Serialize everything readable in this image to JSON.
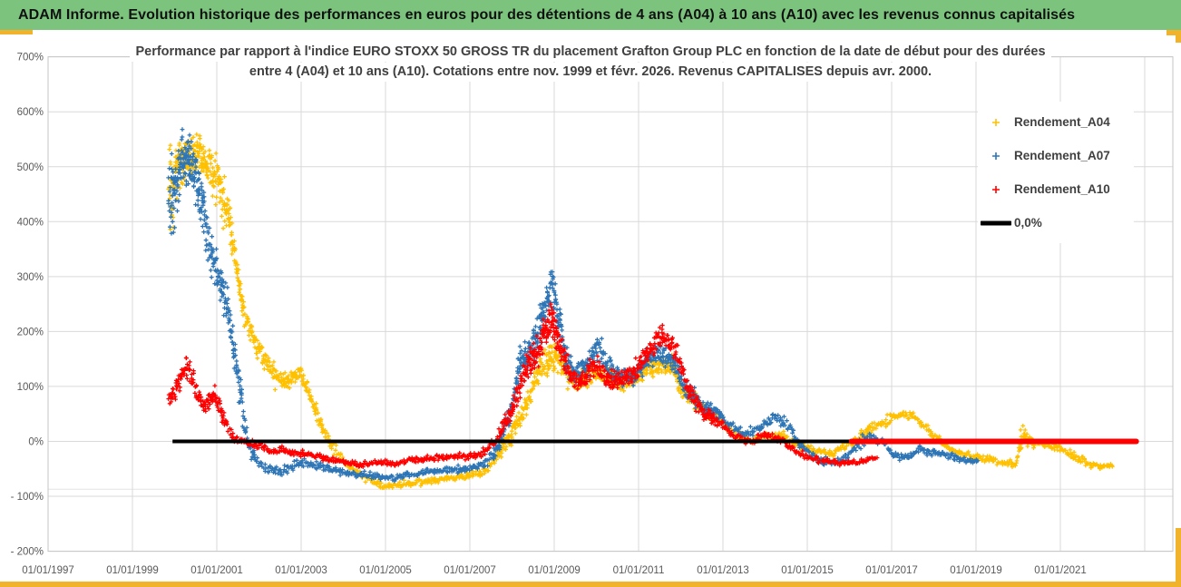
{
  "report": {
    "title": "ADAM Informe. Evolution historique des performances en euros pour des détentions de 4 ans (A04) à 10 ans (A10) avec les revenus connus capitalisés"
  },
  "theme": {
    "title_bar_bg": "#7CC47E",
    "title_bar_text": "#111111",
    "accent_gold": "#F0B32B",
    "grid_color": "#D9D9D9",
    "frame_color": "#C6C6C6",
    "axis_text_color": "#595959",
    "title_text_color": "#404040",
    "legend_text_color": "#404040",
    "background": "#FFFFFF"
  },
  "chart_data": {
    "type": "scatter",
    "title_line1": "Performance par rapport à l'indice EURO STOXX 50 GROSS TR  du placement Grafton Group PLC en fonction de la date de début pour des durées",
    "title_line2": "entre 4 (A04) et 10 ans (A10).  Cotations entre nov. 1999 et févr. 2026.  Revenus CAPITALISES depuis avr. 2000.",
    "x_axis": {
      "tick_labels": [
        "01/01/1997",
        "01/01/1999",
        "01/01/2001",
        "01/01/2003",
        "01/01/2005",
        "01/01/2007",
        "01/01/2009",
        "01/01/2011",
        "01/01/2013",
        "01/01/2015",
        "01/01/2017",
        "01/01/2019",
        "01/01/2021"
      ],
      "tick_years": [
        1997,
        1999,
        2001,
        2003,
        2005,
        2007,
        2009,
        2011,
        2013,
        2015,
        2017,
        2019,
        2021
      ],
      "grid_years": [
        1997,
        1999,
        2001,
        2003,
        2005,
        2007,
        2009,
        2011,
        2013,
        2015,
        2017,
        2019,
        2021,
        2023
      ],
      "min_year": 1997,
      "max_year": 2023.7
    },
    "y_axis": {
      "tick_labels": [
        "700%",
        "600%",
        "500%",
        "400%",
        "300%",
        "200%",
        "100%",
        "0%",
        "- 100%",
        "- 200%"
      ],
      "tick_values": [
        700,
        600,
        500,
        400,
        300,
        200,
        100,
        0,
        -100,
        -200
      ],
      "min": -200,
      "max": 700,
      "extra_gridline_value": -87
    },
    "legend": [
      {
        "label": "Rendement_A04",
        "color": "#FFC000",
        "marker": "plus"
      },
      {
        "label": "Rendement_A07",
        "color": "#2E75B6",
        "marker": "plus"
      },
      {
        "label": "Rendement_A10",
        "color": "#FF0000",
        "marker": "plus"
      },
      {
        "label": "0,0%",
        "color": "#000000",
        "marker": "line"
      }
    ],
    "zero_line": {
      "label": "0,0%",
      "color": "#000000",
      "value": 0,
      "from_year": 1999.95,
      "to_year": 2022.65
    },
    "series": [
      {
        "name": "Rendement_A04",
        "color": "#FFC000",
        "anchors": [
          [
            1999.87,
            440,
            130
          ],
          [
            2000.1,
            500,
            70
          ],
          [
            2000.35,
            520,
            55
          ],
          [
            2000.6,
            530,
            50
          ],
          [
            2000.85,
            490,
            55
          ],
          [
            2001.05,
            470,
            60
          ],
          [
            2001.25,
            420,
            55
          ],
          [
            2001.45,
            330,
            45
          ],
          [
            2001.65,
            230,
            35
          ],
          [
            2001.9,
            185,
            30
          ],
          [
            2002.15,
            150,
            30
          ],
          [
            2002.4,
            115,
            25
          ],
          [
            2002.7,
            110,
            22
          ],
          [
            2003.0,
            125,
            22
          ],
          [
            2003.3,
            65,
            20
          ],
          [
            2003.65,
            0,
            15
          ],
          [
            2004.05,
            -40,
            12
          ],
          [
            2004.5,
            -65,
            10
          ],
          [
            2005.0,
            -82,
            7
          ],
          [
            2005.5,
            -76,
            8
          ],
          [
            2006.0,
            -72,
            8
          ],
          [
            2006.5,
            -67,
            8
          ],
          [
            2007.0,
            -62,
            8
          ],
          [
            2007.4,
            -55,
            10
          ],
          [
            2007.7,
            -20,
            18
          ],
          [
            2008.0,
            15,
            25
          ],
          [
            2008.3,
            60,
            30
          ],
          [
            2008.55,
            110,
            30
          ],
          [
            2008.8,
            150,
            35
          ],
          [
            2009.05,
            155,
            35
          ],
          [
            2009.3,
            120,
            30
          ],
          [
            2009.6,
            115,
            28
          ],
          [
            2009.9,
            125,
            28
          ],
          [
            2010.2,
            120,
            25
          ],
          [
            2010.55,
            105,
            22
          ],
          [
            2010.9,
            115,
            22
          ],
          [
            2011.2,
            130,
            25
          ],
          [
            2011.5,
            140,
            28
          ],
          [
            2011.8,
            135,
            28
          ],
          [
            2012.1,
            90,
            25
          ],
          [
            2012.5,
            60,
            18
          ],
          [
            2012.85,
            45,
            15
          ],
          [
            2013.2,
            18,
            12
          ],
          [
            2013.6,
            2,
            10
          ],
          [
            2014.0,
            10,
            10
          ],
          [
            2014.4,
            12,
            10
          ],
          [
            2014.8,
            -8,
            10
          ],
          [
            2015.2,
            -18,
            8
          ],
          [
            2015.6,
            -22,
            8
          ],
          [
            2015.9,
            -10,
            10
          ],
          [
            2016.2,
            5,
            15
          ],
          [
            2016.45,
            20,
            18
          ],
          [
            2016.7,
            32,
            12
          ],
          [
            2017.0,
            42,
            12
          ],
          [
            2017.3,
            50,
            10
          ],
          [
            2017.55,
            45,
            10
          ],
          [
            2017.8,
            25,
            10
          ],
          [
            2018.05,
            8,
            10
          ],
          [
            2018.35,
            -12,
            10
          ],
          [
            2018.65,
            -22,
            8
          ],
          [
            2018.95,
            -28,
            8
          ],
          [
            2019.3,
            -33,
            8
          ],
          [
            2019.65,
            -40,
            8
          ],
          [
            2019.95,
            -40,
            8
          ],
          [
            2020.1,
            10,
            32
          ],
          [
            2020.3,
            0,
            18
          ],
          [
            2020.6,
            -6,
            10
          ],
          [
            2020.9,
            -10,
            10
          ],
          [
            2021.15,
            -18,
            10
          ],
          [
            2021.45,
            -30,
            10
          ],
          [
            2021.75,
            -45,
            8
          ],
          [
            2022.05,
            -46,
            7
          ],
          [
            2022.25,
            -43,
            5
          ]
        ]
      },
      {
        "name": "Rendement_A07",
        "color": "#2E75B6",
        "anchors": [
          [
            1999.87,
            420,
            120
          ],
          [
            2000.05,
            480,
            90
          ],
          [
            2000.25,
            520,
            60
          ],
          [
            2000.45,
            500,
            65
          ],
          [
            2000.65,
            430,
            60
          ],
          [
            2000.85,
            350,
            55
          ],
          [
            2001.05,
            300,
            50
          ],
          [
            2001.25,
            245,
            45
          ],
          [
            2001.45,
            150,
            40
          ],
          [
            2001.6,
            60,
            35
          ],
          [
            2001.75,
            -10,
            20
          ],
          [
            2001.95,
            -35,
            15
          ],
          [
            2002.2,
            -48,
            12
          ],
          [
            2002.5,
            -55,
            12
          ],
          [
            2002.8,
            -45,
            12
          ],
          [
            2003.1,
            -40,
            12
          ],
          [
            2003.5,
            -45,
            12
          ],
          [
            2003.9,
            -55,
            10
          ],
          [
            2004.3,
            -60,
            10
          ],
          [
            2004.7,
            -62,
            10
          ],
          [
            2005.1,
            -68,
            8
          ],
          [
            2005.5,
            -62,
            9
          ],
          [
            2006.0,
            -56,
            9
          ],
          [
            2006.5,
            -52,
            9
          ],
          [
            2007.0,
            -50,
            9
          ],
          [
            2007.4,
            -40,
            12
          ],
          [
            2007.7,
            -5,
            20
          ],
          [
            2008.0,
            65,
            30
          ],
          [
            2008.15,
            130,
            45
          ],
          [
            2008.35,
            150,
            40
          ],
          [
            2008.6,
            190,
            45
          ],
          [
            2008.95,
            295,
            50
          ],
          [
            2009.1,
            230,
            45
          ],
          [
            2009.3,
            140,
            35
          ],
          [
            2009.55,
            120,
            30
          ],
          [
            2009.8,
            140,
            32
          ],
          [
            2010.05,
            175,
            35
          ],
          [
            2010.3,
            130,
            28
          ],
          [
            2010.6,
            115,
            25
          ],
          [
            2010.9,
            120,
            25
          ],
          [
            2011.2,
            150,
            28
          ],
          [
            2011.5,
            158,
            28
          ],
          [
            2011.8,
            150,
            28
          ],
          [
            2012.1,
            100,
            28
          ],
          [
            2012.5,
            62,
            20
          ],
          [
            2012.85,
            55,
            18
          ],
          [
            2013.1,
            30,
            15
          ],
          [
            2013.5,
            15,
            12
          ],
          [
            2013.9,
            25,
            12
          ],
          [
            2014.2,
            45,
            12
          ],
          [
            2014.5,
            35,
            12
          ],
          [
            2014.8,
            -5,
            12
          ],
          [
            2015.2,
            -30,
            10
          ],
          [
            2015.55,
            -40,
            10
          ],
          [
            2015.9,
            -32,
            10
          ],
          [
            2016.2,
            -5,
            15
          ],
          [
            2016.5,
            8,
            14
          ],
          [
            2016.8,
            0,
            10
          ],
          [
            2017.1,
            -28,
            10
          ],
          [
            2017.4,
            -30,
            10
          ],
          [
            2017.65,
            -15,
            10
          ],
          [
            2017.95,
            -20,
            10
          ],
          [
            2018.25,
            -22,
            10
          ],
          [
            2018.6,
            -32,
            9
          ],
          [
            2018.9,
            -38,
            7
          ],
          [
            2019.05,
            -35,
            5
          ]
        ]
      },
      {
        "name": "Rendement_A10",
        "color": "#FF0000",
        "flat_segment": {
          "from_year": 2016.05,
          "to_year": 2022.8,
          "value": 0
        },
        "anchors": [
          [
            1999.87,
            75,
            25
          ],
          [
            2000.1,
            110,
            28
          ],
          [
            2000.3,
            140,
            25
          ],
          [
            2000.5,
            95,
            25
          ],
          [
            2000.7,
            60,
            20
          ],
          [
            2000.95,
            85,
            25
          ],
          [
            2001.15,
            45,
            18
          ],
          [
            2001.35,
            10,
            12
          ],
          [
            2001.55,
            0,
            10
          ],
          [
            2001.8,
            -5,
            10
          ],
          [
            2002.05,
            -8,
            10
          ],
          [
            2002.3,
            -20,
            10
          ],
          [
            2002.6,
            -15,
            10
          ],
          [
            2002.9,
            -22,
            9
          ],
          [
            2003.2,
            -25,
            9
          ],
          [
            2003.6,
            -30,
            9
          ],
          [
            2004.0,
            -38,
            8
          ],
          [
            2004.4,
            -42,
            8
          ],
          [
            2004.8,
            -38,
            8
          ],
          [
            2005.2,
            -40,
            8
          ],
          [
            2005.6,
            -35,
            8
          ],
          [
            2006.0,
            -31,
            8
          ],
          [
            2006.5,
            -28,
            8
          ],
          [
            2007.0,
            -28,
            8
          ],
          [
            2007.35,
            -20,
            10
          ],
          [
            2007.65,
            5,
            15
          ],
          [
            2008.0,
            60,
            25
          ],
          [
            2008.3,
            125,
            35
          ],
          [
            2008.6,
            165,
            40
          ],
          [
            2008.95,
            225,
            50
          ],
          [
            2009.15,
            170,
            40
          ],
          [
            2009.4,
            115,
            30
          ],
          [
            2009.65,
            110,
            28
          ],
          [
            2009.95,
            140,
            30
          ],
          [
            2010.25,
            115,
            25
          ],
          [
            2010.55,
            108,
            25
          ],
          [
            2010.9,
            125,
            25
          ],
          [
            2011.2,
            160,
            30
          ],
          [
            2011.55,
            190,
            32
          ],
          [
            2011.85,
            170,
            30
          ],
          [
            2012.15,
            100,
            28
          ],
          [
            2012.5,
            55,
            20
          ],
          [
            2012.9,
            35,
            15
          ],
          [
            2013.25,
            10,
            12
          ],
          [
            2013.6,
            0,
            10
          ],
          [
            2014.0,
            10,
            10
          ],
          [
            2014.35,
            5,
            10
          ],
          [
            2014.7,
            -15,
            10
          ],
          [
            2015.05,
            -30,
            8
          ],
          [
            2015.4,
            -35,
            8
          ],
          [
            2015.75,
            -40,
            8
          ],
          [
            2016.1,
            -38,
            8
          ],
          [
            2016.45,
            -32,
            6
          ],
          [
            2016.65,
            -30,
            4
          ]
        ]
      }
    ]
  }
}
